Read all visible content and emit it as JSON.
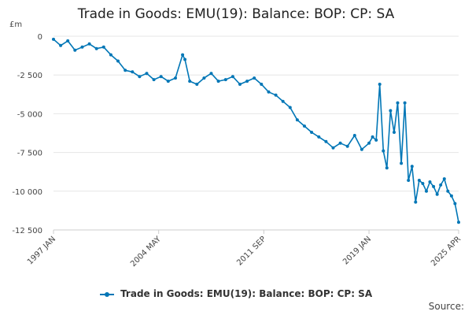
{
  "chart_data": {
    "type": "line",
    "title": "Trade in Goods: EMU(19): Balance: BOP: CP: SA",
    "unit": "£m",
    "ylim": [
      -12500,
      0
    ],
    "yticks": [
      0,
      -2500,
      -5000,
      -7500,
      -10000,
      -12500
    ],
    "ytick_labels": [
      "0",
      "-2 500",
      "-5 000",
      "-7 500",
      "-10 000",
      "-12 500"
    ],
    "xticks": [
      {
        "label": "1997 JAN",
        "x": "1997-01"
      },
      {
        "label": "2004 MAY",
        "x": "2004-05"
      },
      {
        "label": "2011 SEP",
        "x": "2011-09"
      },
      {
        "label": "2019 JAN",
        "x": "2019-01"
      },
      {
        "label": "2025 APR",
        "x": "2025-04"
      }
    ],
    "grid": true,
    "legend_position": "bottom",
    "series": [
      {
        "name": "Trade in Goods: EMU(19): Balance: BOP: CP: SA",
        "color": "#0076b6",
        "x": [
          "1997-01",
          "1997-07",
          "1998-01",
          "1998-07",
          "1999-01",
          "1999-07",
          "2000-01",
          "2000-07",
          "2001-01",
          "2001-07",
          "2002-01",
          "2002-07",
          "2003-01",
          "2003-07",
          "2004-01",
          "2004-07",
          "2005-01",
          "2005-07",
          "2006-01",
          "2006-03",
          "2006-07",
          "2007-01",
          "2007-07",
          "2008-01",
          "2008-07",
          "2009-01",
          "2009-07",
          "2010-01",
          "2010-07",
          "2011-01",
          "2011-07",
          "2012-01",
          "2012-07",
          "2013-01",
          "2013-07",
          "2014-01",
          "2014-07",
          "2015-01",
          "2015-07",
          "2016-01",
          "2016-07",
          "2017-01",
          "2017-07",
          "2018-01",
          "2018-07",
          "2019-01",
          "2019-04",
          "2019-07",
          "2019-10",
          "2020-01",
          "2020-04",
          "2020-07",
          "2020-10",
          "2021-01",
          "2021-04",
          "2021-07",
          "2021-10",
          "2022-01",
          "2022-04",
          "2022-07",
          "2022-10",
          "2023-01",
          "2023-04",
          "2023-07",
          "2023-10",
          "2024-01",
          "2024-04",
          "2024-07",
          "2024-10",
          "2025-01",
          "2025-04"
        ],
        "values": [
          -200,
          -600,
          -300,
          -900,
          -700,
          -500,
          -800,
          -700,
          -1200,
          -1600,
          -2200,
          -2300,
          -2600,
          -2400,
          -2800,
          -2600,
          -2900,
          -2700,
          -1200,
          -1500,
          -2900,
          -3100,
          -2700,
          -2400,
          -2900,
          -2800,
          -2600,
          -3100,
          -2900,
          -2700,
          -3100,
          -3600,
          -3800,
          -4200,
          -4600,
          -5400,
          -5800,
          -6200,
          -6500,
          -6800,
          -7200,
          -6900,
          -7100,
          -6400,
          -7300,
          -6900,
          -6500,
          -6700,
          -3100,
          -7400,
          -8500,
          -4800,
          -6200,
          -4300,
          -8200,
          -4300,
          -9300,
          -8400,
          -10700,
          -9300,
          -9500,
          -10000,
          -9400,
          -9700,
          -10200,
          -9600,
          -9200,
          -10000,
          -10300,
          -10800,
          -12000
        ]
      }
    ]
  },
  "legend": {
    "label": "Trade in Goods: EMU(19): Balance: BOP: CP: SA"
  },
  "source_label": "Source:"
}
